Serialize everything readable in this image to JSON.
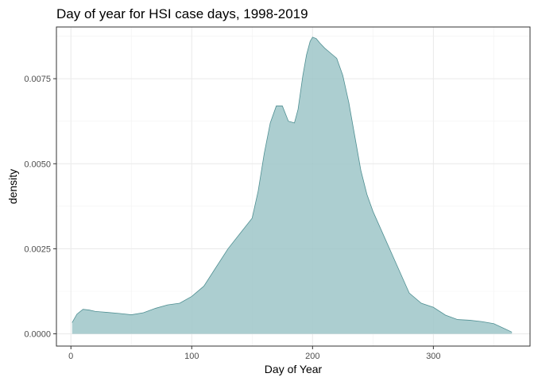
{
  "chart_data": {
    "type": "area",
    "title": "Day of year for HSI case days, 1998-2019",
    "xlabel": "Day of Year",
    "ylabel": "density",
    "xlim": [
      -12,
      380
    ],
    "ylim": [
      -0.00036,
      0.00902
    ],
    "x_ticks": [
      0,
      100,
      200,
      300
    ],
    "x_tick_labels": [
      "0",
      "100",
      "200",
      "300"
    ],
    "y_ticks": [
      0.0,
      0.0025,
      0.005,
      0.0075
    ],
    "y_tick_labels": [
      "0.0000",
      "0.0025",
      "0.0050",
      "0.0075"
    ],
    "grid": true,
    "fill_color": "#9dc6c8",
    "line_color": "#4f8f92",
    "series": [
      {
        "x": [
          1,
          5,
          10,
          15,
          20,
          30,
          40,
          50,
          60,
          70,
          80,
          90,
          100,
          110,
          120,
          130,
          140,
          150,
          155,
          160,
          165,
          170,
          175,
          180,
          185,
          188,
          192,
          195,
          198,
          200,
          203,
          206,
          210,
          215,
          220,
          225,
          230,
          235,
          240,
          245,
          250,
          260,
          270,
          280,
          290,
          300,
          310,
          320,
          330,
          340,
          350,
          365
        ],
        "y": [
          0.00033,
          0.00058,
          0.00072,
          0.0007,
          0.00066,
          0.00063,
          0.0006,
          0.00056,
          0.00062,
          0.00075,
          0.00085,
          0.0009,
          0.0011,
          0.0014,
          0.00195,
          0.0025,
          0.00295,
          0.0034,
          0.0042,
          0.0053,
          0.0062,
          0.0067,
          0.0067,
          0.00625,
          0.0062,
          0.0066,
          0.0076,
          0.0082,
          0.0086,
          0.00872,
          0.00868,
          0.00855,
          0.0084,
          0.00825,
          0.0081,
          0.0076,
          0.0068,
          0.0058,
          0.0048,
          0.0041,
          0.0036,
          0.0028,
          0.002,
          0.0012,
          0.0009,
          0.00078,
          0.00055,
          0.00042,
          0.0004,
          0.00036,
          0.0003,
          5e-05
        ]
      }
    ]
  }
}
